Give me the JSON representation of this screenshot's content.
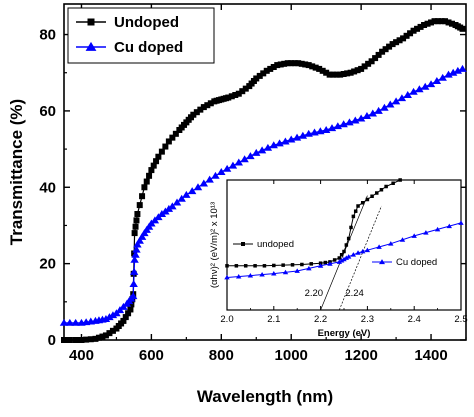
{
  "chart_data": [
    {
      "type": "scatter",
      "xlabel": "Wavelength (nm)",
      "ylabel": "Transmittance (%)",
      "xlim": [
        350,
        1500
      ],
      "ylim": [
        0,
        88
      ],
      "xticks": [
        400,
        600,
        800,
        1000,
        1200,
        1400
      ],
      "yticks": [
        0,
        20,
        40,
        60,
        80
      ],
      "tick_labels_x": [
        "400",
        "600",
        "800",
        "1000",
        "1200",
        "1400"
      ],
      "tick_labels_y": [
        "0",
        "20",
        "40",
        "60",
        "80"
      ],
      "legend_position": "top-left",
      "grid": false,
      "series": [
        {
          "name": "Undoped",
          "marker": "square",
          "color": "#000000",
          "x": [
            350,
            400,
            440,
            470,
            500,
            520,
            540,
            548,
            552,
            560,
            580,
            600,
            620,
            650,
            680,
            700,
            720,
            750,
            780,
            800,
            820,
            850,
            880,
            900,
            930,
            960,
            990,
            1020,
            1050,
            1080,
            1110,
            1140,
            1170,
            1200,
            1230,
            1260,
            1290,
            1320,
            1350,
            1380,
            1410,
            1440,
            1470,
            1490
          ],
          "y": [
            0,
            0,
            0.3,
            1.2,
            3,
            5,
            8,
            12,
            28,
            33,
            40,
            44.5,
            48,
            52,
            55,
            57,
            59,
            61,
            62.5,
            63,
            63.5,
            64.5,
            66.5,
            68.5,
            70.5,
            72,
            72.5,
            72.5,
            72,
            71,
            69.5,
            69.5,
            70,
            71,
            73,
            75.5,
            77.5,
            79,
            81,
            82.5,
            83.5,
            83.5,
            82.5,
            81.5
          ]
        },
        {
          "name": "Cu doped",
          "marker": "triangle",
          "color": "#0000ff",
          "x": [
            350,
            400,
            440,
            470,
            500,
            530,
            548,
            552,
            560,
            580,
            600,
            630,
            660,
            700,
            750,
            800,
            850,
            900,
            950,
            1000,
            1050,
            1100,
            1150,
            1200,
            1250,
            1300,
            1350,
            1400,
            1450,
            1490
          ],
          "y": [
            4.5,
            4.5,
            5,
            5.5,
            7,
            9.5,
            11.5,
            21,
            25,
            28,
            30.5,
            33,
            35,
            38,
            41,
            44,
            46.5,
            49,
            51,
            52.5,
            54,
            55,
            56.5,
            58,
            60,
            62.5,
            65,
            67,
            69.5,
            71
          ]
        }
      ]
    },
    {
      "type": "line",
      "xlabel": "Energy (eV)",
      "ylabel": "(αhν)² (eV/m)² x 10¹³",
      "xlim": [
        2.0,
        2.5
      ],
      "ylim": [
        0,
        1
      ],
      "xticks": [
        2.0,
        2.1,
        2.2,
        2.3,
        2.4,
        2.5
      ],
      "tick_labels_x": [
        "2.0",
        "2.1",
        "2.2",
        "2.3",
        "2.4",
        "2.5"
      ],
      "annotations": [
        "2.20",
        "2.24"
      ],
      "series": [
        {
          "name": "undoped",
          "marker": "square",
          "color": "#000000",
          "x": [
            2.0,
            2.04,
            2.08,
            2.12,
            2.16,
            2.2,
            2.22,
            2.24,
            2.25,
            2.26,
            2.27,
            2.28,
            2.3,
            2.32,
            2.34,
            2.37
          ],
          "y": [
            0.34,
            0.34,
            0.34,
            0.345,
            0.35,
            0.36,
            0.37,
            0.4,
            0.45,
            0.55,
            0.72,
            0.8,
            0.85,
            0.9,
            0.95,
            1.0
          ]
        },
        {
          "name": "Cu doped",
          "marker": "triangle",
          "color": "#0000ff",
          "x": [
            2.0,
            2.05,
            2.1,
            2.15,
            2.2,
            2.24,
            2.25,
            2.26,
            2.28,
            2.3,
            2.35,
            2.4,
            2.45,
            2.5
          ],
          "y": [
            0.25,
            0.265,
            0.28,
            0.3,
            0.34,
            0.37,
            0.39,
            0.41,
            0.44,
            0.46,
            0.51,
            0.57,
            0.62,
            0.67
          ]
        }
      ],
      "fit_lines": [
        {
          "x": [
            2.2,
            2.3
          ],
          "y": [
            0.0,
            0.88
          ]
        },
        {
          "x": [
            2.24,
            2.33
          ],
          "y": [
            0.0,
            0.8
          ]
        }
      ]
    }
  ]
}
